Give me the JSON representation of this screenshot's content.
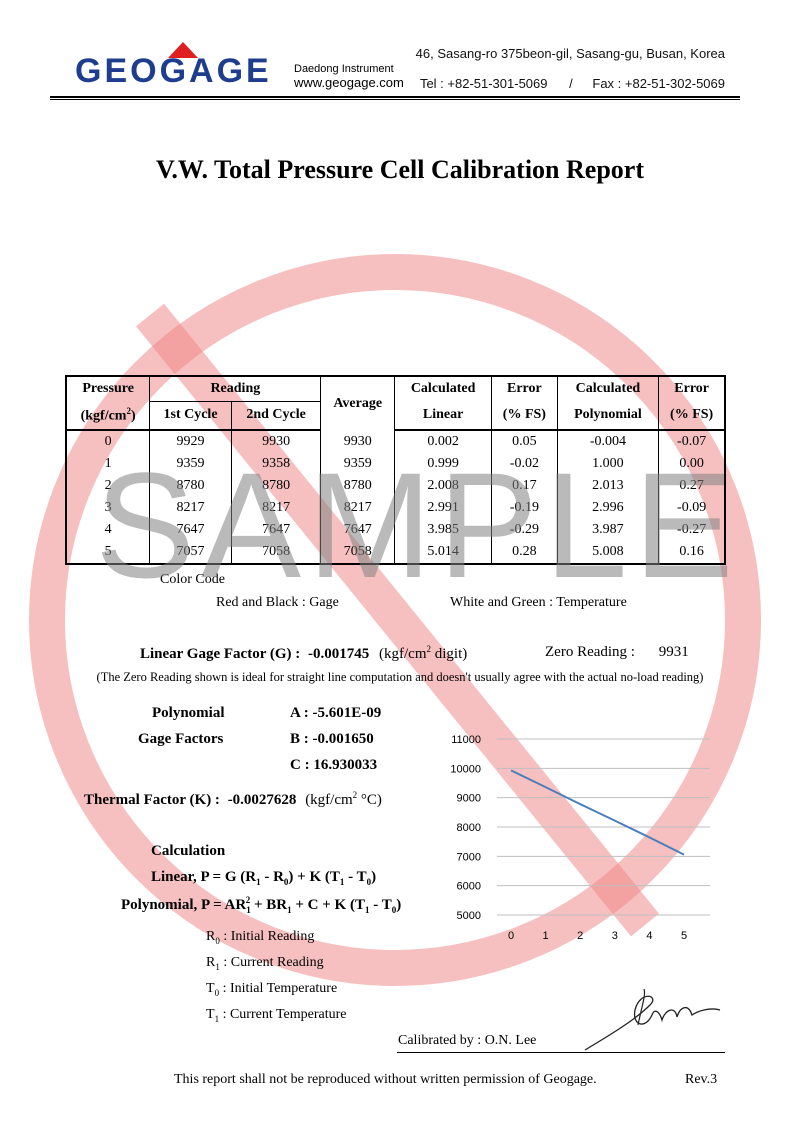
{
  "header": {
    "logo_text": "GEOGAGE",
    "logo_sub1": "Daedong Instrument",
    "logo_sub2": "www.geogage.com",
    "address": "46, Sasang-ro 375beon-gil, Sasang-gu, Busan, Korea",
    "tel": "Tel : +82-51-301-5069",
    "separator": "/",
    "fax": "Fax : +82-51-302-5069",
    "brand_color": "#1f3d8f",
    "accent_color": "#e02020"
  },
  "title": "V.W. Total Pressure Cell Calibration Report",
  "table": {
    "col_pressure": "Pressure",
    "col_pressure_unit_a": "(kgf/cm",
    "col_pressure_unit_sup": "2",
    "col_pressure_unit_b": ")",
    "col_reading": "Reading",
    "col_1st": "1st Cycle",
    "col_2nd": "2nd Cycle",
    "col_average": "Average",
    "col_calc_linear_1": "Calculated",
    "col_calc_linear_2": "Linear",
    "col_error1_1": "Error",
    "col_error1_2": "(% FS)",
    "col_calc_poly_1": "Calculated",
    "col_calc_poly_2": "Polynomial",
    "col_error2_1": "Error",
    "col_error2_2": "(% FS)",
    "rows": [
      {
        "p": "0",
        "c1": "9929",
        "c2": "9930",
        "avg": "9930",
        "lin": "0.002",
        "e1": "0.05",
        "poly": "-0.004",
        "e2": "-0.07"
      },
      {
        "p": "1",
        "c1": "9359",
        "c2": "9358",
        "avg": "9359",
        "lin": "0.999",
        "e1": "-0.02",
        "poly": "1.000",
        "e2": "0.00"
      },
      {
        "p": "2",
        "c1": "8780",
        "c2": "8780",
        "avg": "8780",
        "lin": "2.008",
        "e1": "0.17",
        "poly": "2.013",
        "e2": "0.27"
      },
      {
        "p": "3",
        "c1": "8217",
        "c2": "8217",
        "avg": "8217",
        "lin": "2.991",
        "e1": "-0.19",
        "poly": "2.996",
        "e2": "-0.09"
      },
      {
        "p": "4",
        "c1": "7647",
        "c2": "7647",
        "avg": "7647",
        "lin": "3.985",
        "e1": "-0.29",
        "poly": "3.987",
        "e2": "-0.27"
      },
      {
        "p": "5",
        "c1": "7057",
        "c2": "7058",
        "avg": "7058",
        "lin": "5.014",
        "e1": "0.28",
        "poly": "5.008",
        "e2": "0.16"
      }
    ]
  },
  "color_code": {
    "label": "Color Code",
    "gage": "Red and Black : Gage",
    "temp": "White and Green : Temperature"
  },
  "gage_factor": {
    "label": "Linear Gage Factor (G) :",
    "value": "-0.001745",
    "unit_a": "(kgf/cm",
    "unit_sup": "2",
    "unit_b": " digit)",
    "zero_label": "Zero Reading :",
    "zero_value": "9931",
    "note": "(The Zero Reading shown is ideal for straight line computation and doesn't usually agree with the actual no-load reading)"
  },
  "poly": {
    "label1": "Polynomial",
    "label2": "Gage Factors",
    "a": "A : -5.601E-09",
    "b": "B : -0.001650",
    "c": "C : 16.930033"
  },
  "thermal": {
    "label": "Thermal Factor (K) :",
    "value": "-0.0027628",
    "unit_a": "(kgf/cm",
    "unit_sup": "2",
    "unit_b": " °C)"
  },
  "calc": {
    "title": "Calculation",
    "linear_a": "Linear, P = G (R",
    "linear_s1": "1",
    "linear_b": " - R",
    "linear_s2": "0",
    "linear_c": ") + K (T",
    "linear_s3": "1",
    "linear_d": " - T",
    "linear_s4": "0",
    "linear_e": ")",
    "poly_a": "Polynomial, P = AR",
    "poly_s1": "1",
    "poly_sup": "2",
    "poly_b": " + BR",
    "poly_s2": "1",
    "poly_c": " + C + K (T",
    "poly_s3": "1",
    "poly_d": " - T",
    "poly_s4": "0",
    "poly_e": ")"
  },
  "legend": [
    {
      "sym": "R",
      "sub": "0",
      "text": " : Initial Reading"
    },
    {
      "sym": "R",
      "sub": "1",
      "text": " : Current Reading"
    },
    {
      "sym": "T",
      "sub": "0",
      "text": " : Initial Temperature"
    },
    {
      "sym": "T",
      "sub": "1",
      "text": " : Current Temperature"
    }
  ],
  "calibrated_by": "Calibrated by :  O.N. Lee",
  "footer": "This report shall not be reproduced without written permission of Geogage.",
  "rev": "Rev.3",
  "watermark": "SAMPLE",
  "chart_data": {
    "type": "line",
    "x": [
      0,
      1,
      2,
      3,
      4,
      5
    ],
    "series": [
      {
        "values": [
          9930,
          9359,
          8780,
          8217,
          7647,
          7058
        ],
        "color": "#4a7ebb"
      }
    ],
    "xticks": [
      "0",
      "1",
      "2",
      "3",
      "4",
      "5"
    ],
    "yticks": [
      "5000",
      "6000",
      "7000",
      "8000",
      "9000",
      "10000",
      "11000"
    ],
    "ylim": [
      5000,
      11000
    ],
    "xlim": [
      0,
      5
    ],
    "grid": true
  }
}
